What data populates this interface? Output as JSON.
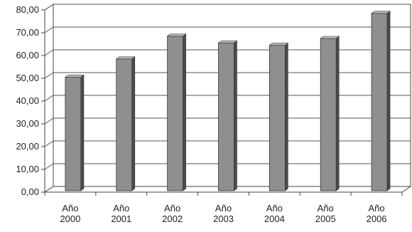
{
  "chart_data": {
    "type": "bar",
    "title": "",
    "xlabel": "",
    "ylabel": "",
    "categories": [
      [
        "Año",
        "2000"
      ],
      [
        "Año",
        "2001"
      ],
      [
        "Año",
        "2002"
      ],
      [
        "Año",
        "2003"
      ],
      [
        "Año",
        "2004"
      ],
      [
        "Año",
        "2005"
      ],
      [
        "Año",
        "2006"
      ]
    ],
    "values": [
      50.5,
      58.5,
      68.5,
      65.5,
      64.5,
      67.5,
      78.5
    ],
    "ylim": [
      0,
      80
    ],
    "yticks": [
      "0,00",
      "10,00",
      "20,00",
      "30,00",
      "40,00",
      "50,00",
      "60,00",
      "70,00",
      "80,00"
    ],
    "grid": true,
    "legend": "none",
    "bar_color": "#8f8f8f",
    "bar_side_color": "#4a4a4a",
    "bar_top_color": "#bdbdbd"
  }
}
